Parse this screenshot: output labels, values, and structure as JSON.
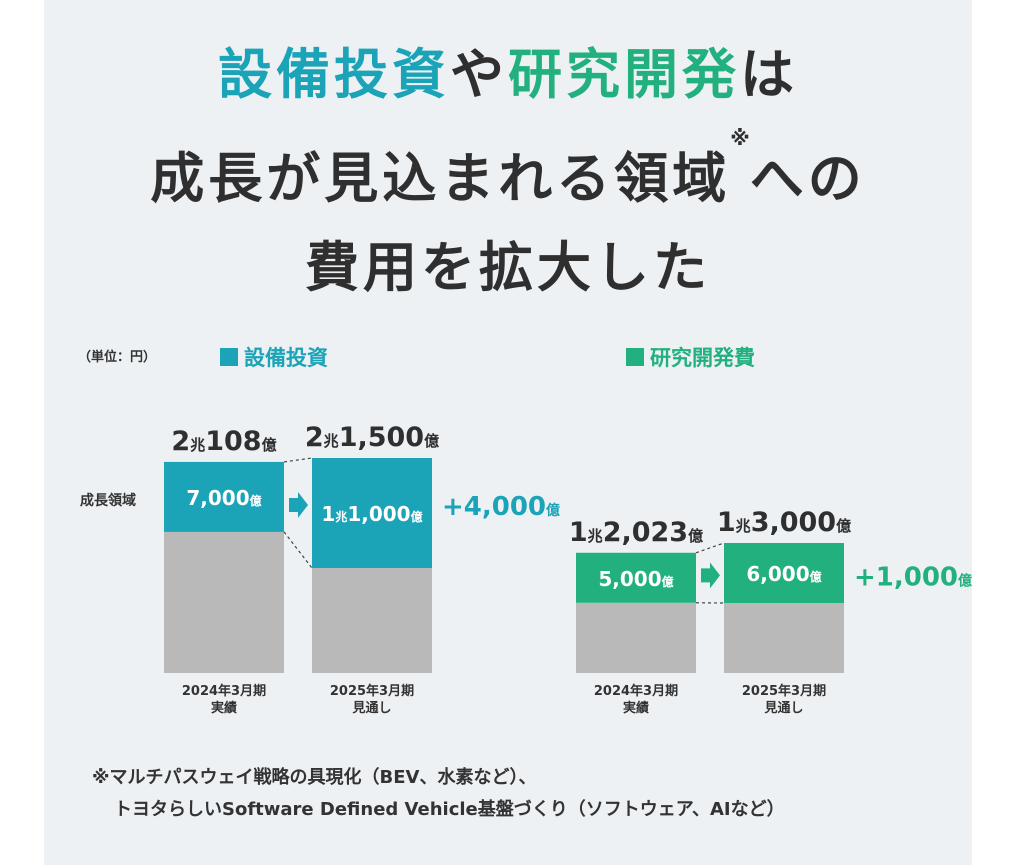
{
  "headline": {
    "line1": {
      "part1": "設備投資",
      "part2": "や",
      "part3": "研究開発",
      "part4": "は"
    },
    "line2": {
      "text": "成長が見込まれる領域",
      "note_mark": "※",
      "tail": "への"
    },
    "line3": "費用を拡大した"
  },
  "unit_label": "（単位：円）",
  "y_category_label": "成長領域",
  "colors": {
    "capex": "#1ba3b7",
    "rnd": "#22b07f",
    "other": "#b9b9b9",
    "background": "#edf1f4"
  },
  "chart_data": [
    {
      "type": "bar",
      "title": "設備投資",
      "categories": [
        "2024年3月期\n実績",
        "2025年3月期\n見通し"
      ],
      "totals": [
        21108,
        21500
      ],
      "total_labels": [
        {
          "a": "2",
          "b": "兆",
          "c": "108",
          "d": "億"
        },
        {
          "a": "2",
          "b": "兆",
          "c": "1,500",
          "d": "億"
        }
      ],
      "series": [
        {
          "name": "成長領域",
          "values": [
            7000,
            11000
          ],
          "labels": [
            {
              "a": "",
              "b": "",
              "c": "7,000",
              "d": "億"
            },
            {
              "a": "1",
              "b": "兆",
              "c": "1,000",
              "d": "億"
            }
          ]
        },
        {
          "values": [
            14108,
            10500
          ]
        }
      ],
      "delta_label": {
        "text": "+4,000",
        "unit": "億"
      },
      "unit": "億円"
    },
    {
      "type": "bar",
      "title": "研究開発費",
      "categories": [
        "2024年3月期\n実績",
        "2025年3月期\n見通し"
      ],
      "totals": [
        12023,
        13000
      ],
      "total_labels": [
        {
          "a": "1",
          "b": "兆",
          "c": "2,023",
          "d": "億"
        },
        {
          "a": "1",
          "b": "兆",
          "c": "3,000",
          "d": "億"
        }
      ],
      "series": [
        {
          "name": "成長領域",
          "values": [
            5000,
            6000
          ],
          "labels": [
            {
              "a": "",
              "b": "",
              "c": "5,000",
              "d": "億"
            },
            {
              "a": "",
              "b": "",
              "c": "6,000",
              "d": "億"
            }
          ]
        },
        {
          "values": [
            7023,
            7000
          ]
        }
      ],
      "delta_label": {
        "text": "+1,000",
        "unit": "億"
      },
      "unit": "億円"
    }
  ],
  "footnote": {
    "line1": "※マルチパスウェイ戦略の具現化（BEV、水素など）、",
    "line2": "トヨタらしいSoftware Defined Vehicle基盤づくり（ソフトウェア、AIなど）"
  }
}
